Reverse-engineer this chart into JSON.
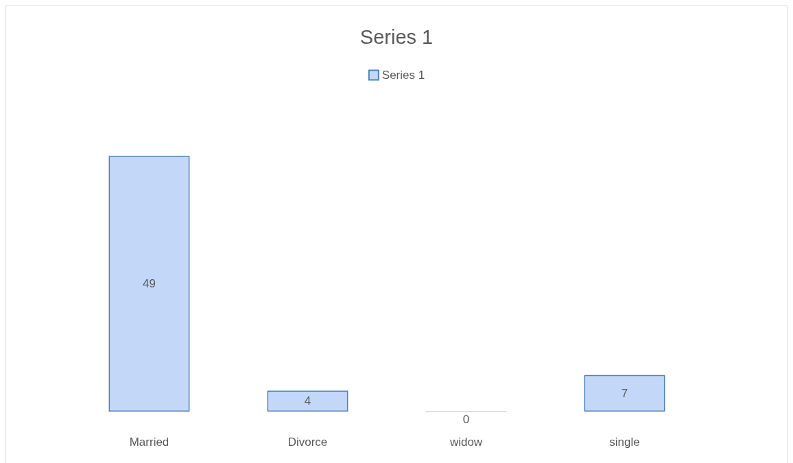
{
  "chart_data": {
    "type": "bar",
    "title": "Series 1",
    "categories": [
      "Married",
      "Divorce",
      "widow",
      "single"
    ],
    "series": [
      {
        "name": "Series 1",
        "color": "#c3d8f9",
        "values": [
          49,
          4,
          0,
          7
        ]
      }
    ],
    "data_labels": true,
    "legend": "top",
    "grid": false,
    "tick_labels": "x"
  }
}
